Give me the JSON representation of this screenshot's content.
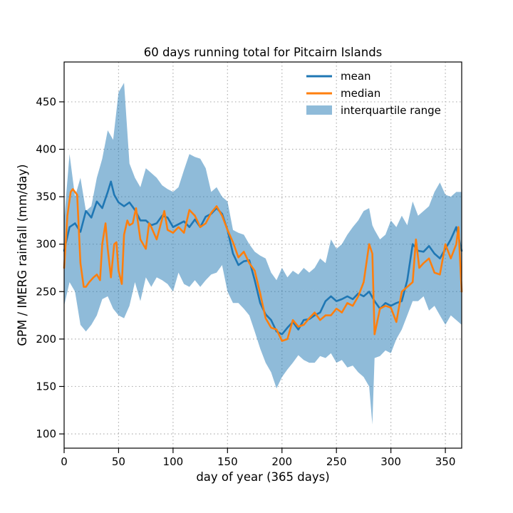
{
  "chart_data": {
    "type": "line",
    "title": "60 days running total for Pitcairn Islands",
    "xlabel": "day of year (365 days)",
    "ylabel": "GPM / IMERG rainfall (mm/day)",
    "xlim": [
      0,
      365
    ],
    "ylim": [
      85,
      492
    ],
    "xticks": [
      0,
      50,
      100,
      150,
      200,
      250,
      300,
      350
    ],
    "yticks": [
      100,
      150,
      200,
      250,
      300,
      350,
      400,
      450
    ],
    "grid": true,
    "legend_position": "top-right",
    "colors": {
      "mean": "#1f77b4",
      "median": "#ff7f0e",
      "iqr": "#1f77b4"
    },
    "series": [
      {
        "name": "mean",
        "x": [
          0,
          5,
          10,
          15,
          20,
          25,
          30,
          35,
          40,
          43,
          46,
          50,
          55,
          60,
          65,
          70,
          75,
          80,
          85,
          90,
          95,
          100,
          105,
          110,
          115,
          120,
          125,
          130,
          135,
          140,
          145,
          150,
          155,
          160,
          165,
          170,
          175,
          180,
          185,
          190,
          195,
          200,
          205,
          210,
          215,
          220,
          225,
          230,
          235,
          240,
          245,
          250,
          255,
          260,
          265,
          270,
          275,
          280,
          285,
          290,
          295,
          300,
          305,
          310,
          315,
          320,
          325,
          330,
          335,
          340,
          345,
          350,
          355,
          360,
          365
        ],
        "values": [
          293,
          318,
          322,
          313,
          335,
          328,
          345,
          338,
          355,
          366,
          352,
          344,
          340,
          344,
          336,
          325,
          325,
          320,
          322,
          330,
          328,
          318,
          321,
          324,
          318,
          326,
          318,
          329,
          332,
          338,
          332,
          315,
          290,
          278,
          282,
          283,
          262,
          238,
          226,
          220,
          208,
          205,
          212,
          218,
          210,
          220,
          221,
          225,
          228,
          240,
          245,
          240,
          242,
          245,
          242,
          248,
          245,
          250,
          240,
          232,
          238,
          235,
          238,
          240,
          262,
          300,
          293,
          292,
          298,
          290,
          285,
          295,
          305,
          318,
          293
        ]
      },
      {
        "name": "median",
        "x": [
          0,
          3,
          6,
          8,
          12,
          15,
          18,
          20,
          23,
          27,
          30,
          33,
          35,
          38,
          40,
          43,
          46,
          48,
          50,
          53,
          55,
          58,
          60,
          63,
          66,
          70,
          75,
          78,
          80,
          85,
          88,
          92,
          95,
          100,
          105,
          110,
          115,
          120,
          125,
          130,
          135,
          140,
          145,
          150,
          155,
          160,
          165,
          170,
          175,
          180,
          185,
          190,
          195,
          200,
          205,
          210,
          215,
          220,
          225,
          230,
          235,
          240,
          245,
          250,
          255,
          260,
          265,
          270,
          275,
          280,
          283,
          285,
          290,
          295,
          300,
          305,
          310,
          315,
          320,
          323,
          326,
          330,
          335,
          340,
          345,
          350,
          355,
          360,
          362,
          365
        ],
        "values": [
          275,
          330,
          355,
          358,
          352,
          280,
          255,
          255,
          260,
          265,
          268,
          262,
          300,
          322,
          295,
          265,
          300,
          302,
          272,
          258,
          310,
          325,
          320,
          322,
          338,
          305,
          295,
          322,
          318,
          305,
          318,
          335,
          315,
          312,
          318,
          312,
          336,
          330,
          318,
          322,
          333,
          340,
          330,
          315,
          302,
          286,
          292,
          280,
          272,
          248,
          222,
          212,
          210,
          198,
          200,
          220,
          213,
          215,
          222,
          228,
          220,
          225,
          225,
          232,
          228,
          238,
          235,
          245,
          260,
          300,
          290,
          205,
          232,
          235,
          233,
          218,
          250,
          255,
          260,
          305,
          275,
          280,
          285,
          270,
          268,
          300,
          285,
          300,
          318,
          250
        ]
      },
      {
        "name": "interquartile range",
        "x": [
          0,
          5,
          10,
          15,
          20,
          25,
          30,
          35,
          40,
          45,
          50,
          55,
          60,
          65,
          70,
          75,
          80,
          85,
          90,
          95,
          100,
          105,
          110,
          115,
          120,
          125,
          130,
          135,
          140,
          145,
          150,
          155,
          160,
          165,
          170,
          175,
          180,
          185,
          190,
          195,
          200,
          205,
          210,
          215,
          220,
          225,
          230,
          235,
          240,
          245,
          250,
          255,
          260,
          265,
          270,
          275,
          280,
          283,
          285,
          290,
          295,
          300,
          305,
          310,
          315,
          320,
          325,
          330,
          335,
          340,
          345,
          350,
          355,
          360,
          365
        ],
        "low": [
          235,
          260,
          250,
          215,
          208,
          215,
          225,
          242,
          245,
          232,
          225,
          222,
          235,
          260,
          240,
          265,
          255,
          265,
          262,
          258,
          250,
          270,
          258,
          255,
          262,
          255,
          262,
          268,
          270,
          278,
          250,
          238,
          238,
          232,
          225,
          208,
          190,
          175,
          165,
          148,
          160,
          168,
          175,
          183,
          178,
          175,
          175,
          182,
          180,
          185,
          175,
          178,
          170,
          172,
          165,
          160,
          150,
          110,
          180,
          182,
          188,
          185,
          200,
          210,
          225,
          240,
          240,
          245,
          230,
          235,
          225,
          215,
          225,
          220,
          215
        ],
        "high": [
          325,
          395,
          350,
          370,
          335,
          340,
          370,
          390,
          420,
          410,
          460,
          470,
          385,
          370,
          360,
          380,
          375,
          370,
          362,
          358,
          355,
          360,
          378,
          395,
          392,
          390,
          380,
          355,
          360,
          350,
          345,
          315,
          312,
          310,
          300,
          292,
          288,
          285,
          270,
          262,
          275,
          265,
          272,
          268,
          275,
          270,
          275,
          285,
          280,
          305,
          295,
          300,
          310,
          318,
          325,
          335,
          338,
          320,
          315,
          305,
          310,
          325,
          318,
          330,
          320,
          345,
          330,
          335,
          340,
          355,
          365,
          352,
          350,
          355,
          355
        ]
      }
    ]
  }
}
